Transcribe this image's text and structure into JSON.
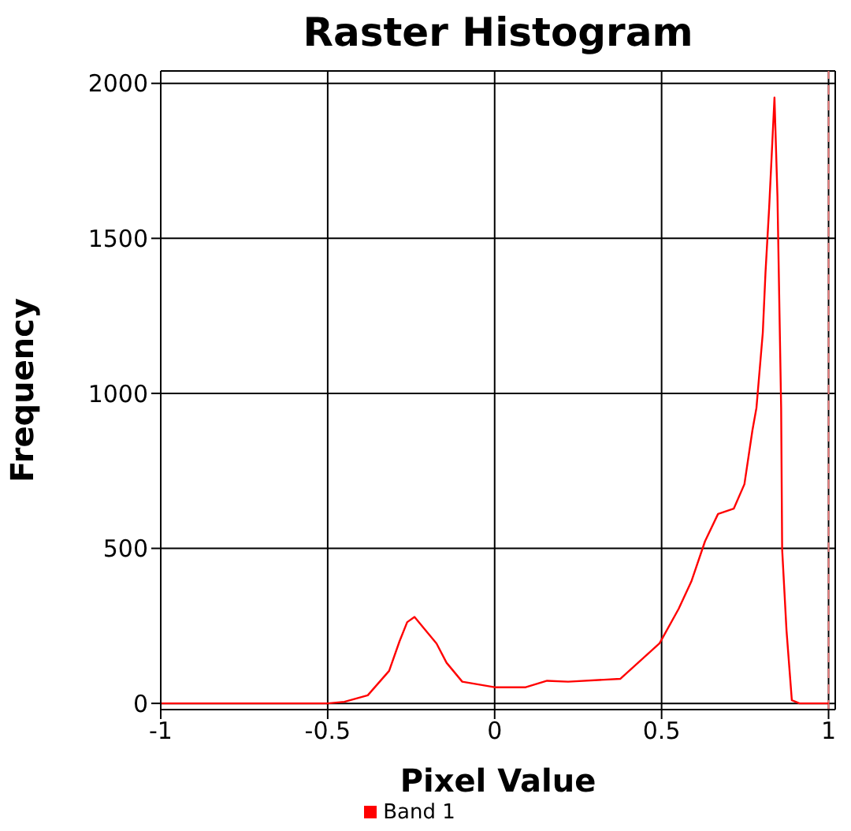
{
  "chart_data": {
    "type": "line",
    "title": "Raster Histogram",
    "xlabel": "Pixel Value",
    "ylabel": "Frequency",
    "x": [
      -1,
      -0.5,
      -0.45,
      -0.38,
      -0.316,
      -0.285,
      -0.262,
      -0.24,
      -0.174,
      -0.144,
      -0.097,
      0,
      0.093,
      0.157,
      0.22,
      0.376,
      0.494,
      0.551,
      0.589,
      0.63,
      0.669,
      0.716,
      0.748,
      0.772,
      0.784,
      0.803,
      0.811,
      0.822,
      0.831,
      0.838,
      0.847,
      0.858,
      0.861,
      0.874,
      0.89,
      0.913,
      1
    ],
    "series": [
      {
        "name": "Band 1",
        "color": "#ff0000",
        "values": [
          0,
          0,
          5,
          26,
          105,
          200,
          262,
          279,
          193,
          131,
          70,
          52,
          52,
          73,
          70,
          79,
          194,
          305,
          393,
          523,
          611,
          628,
          707,
          881,
          953,
          1195,
          1387,
          1597,
          1797,
          1954,
          1633,
          953,
          497,
          236,
          10,
          0,
          0
        ]
      }
    ],
    "xlim": [
      -1,
      1.02
    ],
    "xticks": [
      -1,
      -0.5,
      0,
      0.5,
      1
    ],
    "ylim": [
      -20,
      2040
    ],
    "yticks": [
      0,
      500,
      1000,
      1500,
      2000
    ],
    "ref_lines": [
      {
        "axis": "x",
        "value": 1,
        "color": "#f08080",
        "line_style": "dashed"
      }
    ],
    "grid": true,
    "legend": "bottom",
    "marker": "none",
    "line_style": "solid"
  }
}
